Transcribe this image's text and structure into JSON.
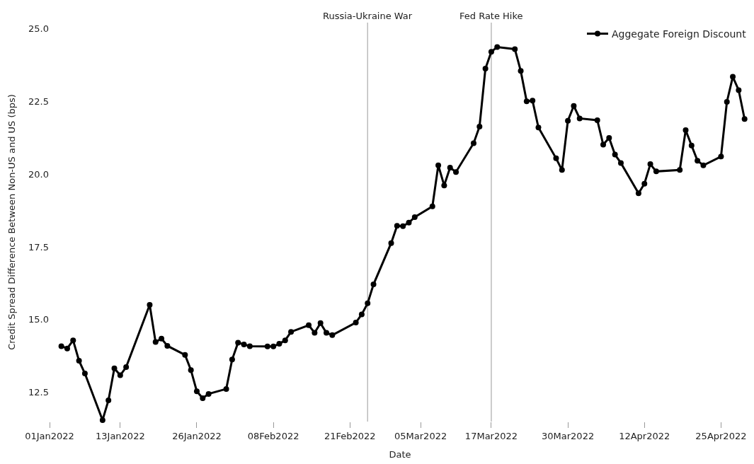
{
  "chart_data": {
    "type": "line",
    "xlabel": "Date",
    "ylabel": "Credit Spread Difference Between Non-US and US (bps)",
    "x": [
      "2022-01-03",
      "2022-01-04",
      "2022-01-05",
      "2022-01-06",
      "2022-01-07",
      "2022-01-10",
      "2022-01-11",
      "2022-01-12",
      "2022-01-13",
      "2022-01-14",
      "2022-01-18",
      "2022-01-19",
      "2022-01-20",
      "2022-01-21",
      "2022-01-24",
      "2022-01-25",
      "2022-01-26",
      "2022-01-27",
      "2022-01-28",
      "2022-01-31",
      "2022-02-01",
      "2022-02-02",
      "2022-02-03",
      "2022-02-04",
      "2022-02-07",
      "2022-02-08",
      "2022-02-09",
      "2022-02-10",
      "2022-02-11",
      "2022-02-14",
      "2022-02-15",
      "2022-02-16",
      "2022-02-17",
      "2022-02-18",
      "2022-02-22",
      "2022-02-23",
      "2022-02-24",
      "2022-02-25",
      "2022-02-28",
      "2022-03-01",
      "2022-03-02",
      "2022-03-03",
      "2022-03-04",
      "2022-03-07",
      "2022-03-08",
      "2022-03-09",
      "2022-03-10",
      "2022-03-11",
      "2022-03-14",
      "2022-03-15",
      "2022-03-16",
      "2022-03-17",
      "2022-03-18",
      "2022-03-21",
      "2022-03-22",
      "2022-03-23",
      "2022-03-24",
      "2022-03-25",
      "2022-03-28",
      "2022-03-29",
      "2022-03-30",
      "2022-03-31",
      "2022-04-01",
      "2022-04-04",
      "2022-04-05",
      "2022-04-06",
      "2022-04-07",
      "2022-04-08",
      "2022-04-11",
      "2022-04-12",
      "2022-04-13",
      "2022-04-14",
      "2022-04-18",
      "2022-04-19",
      "2022-04-20",
      "2022-04-21",
      "2022-04-22",
      "2022-04-25",
      "2022-04-26",
      "2022-04-27",
      "2022-04-28",
      "2022-04-29"
    ],
    "series": [
      {
        "name": "Aggegate Foreign Discount",
        "color": "#000000",
        "values": [
          14.09,
          14.01,
          14.29,
          13.59,
          13.15,
          11.55,
          12.23,
          13.33,
          13.09,
          13.37,
          15.51,
          14.23,
          14.35,
          14.1,
          13.79,
          13.27,
          12.54,
          12.3,
          12.45,
          12.62,
          13.63,
          14.21,
          14.15,
          14.09,
          14.08,
          14.08,
          14.17,
          14.29,
          14.58,
          14.81,
          14.55,
          14.88,
          14.55,
          14.47,
          14.9,
          15.18,
          15.56,
          16.21,
          17.63,
          18.22,
          18.21,
          18.33,
          18.52,
          18.89,
          20.3,
          19.61,
          20.22,
          20.07,
          21.06,
          21.63,
          23.62,
          24.2,
          24.36,
          24.29,
          23.54,
          22.5,
          22.52,
          21.6,
          20.54,
          20.14,
          21.83,
          22.34,
          21.91,
          21.85,
          21.01,
          21.24,
          20.67,
          20.38,
          19.34,
          19.67,
          20.34,
          20.09,
          20.14,
          21.51,
          20.98,
          20.46,
          20.3,
          20.6,
          22.48,
          23.34,
          22.88,
          21.89
        ]
      }
    ],
    "xlim": [
      "2022-01-01",
      "2022-04-30"
    ],
    "xticks": [
      {
        "value": "2022-01-01",
        "label": "01Jan2022"
      },
      {
        "value": "2022-01-13",
        "label": "13Jan2022"
      },
      {
        "value": "2022-01-26",
        "label": "26Jan2022"
      },
      {
        "value": "2022-02-08",
        "label": "08Feb2022"
      },
      {
        "value": "2022-02-21",
        "label": "21Feb2022"
      },
      {
        "value": "2022-03-05",
        "label": "05Mar2022"
      },
      {
        "value": "2022-03-17",
        "label": "17Mar2022"
      },
      {
        "value": "2022-03-30",
        "label": "30Mar2022"
      },
      {
        "value": "2022-04-12",
        "label": "12Apr2022"
      },
      {
        "value": "2022-04-25",
        "label": "25Apr2022"
      }
    ],
    "ylim": [
      11.5,
      25.2
    ],
    "yticks": [
      12.5,
      {
        "value": 15,
        "label": "15.0"
      },
      17.5,
      {
        "value": 20,
        "label": "20.0"
      },
      22.5,
      {
        "value": 25,
        "label": "25.0"
      }
    ],
    "ref_lines": [
      {
        "axis": "x",
        "value": "2022-02-24",
        "label": "Russia-Ukraine War",
        "color": "#bbbbbb"
      },
      {
        "axis": "x",
        "value": "2022-03-17",
        "label": "Fed Rate Hike",
        "color": "#bbbbbb"
      }
    ],
    "grid": false,
    "legend": "top right",
    "marker": "circle",
    "line_style": "solid"
  }
}
